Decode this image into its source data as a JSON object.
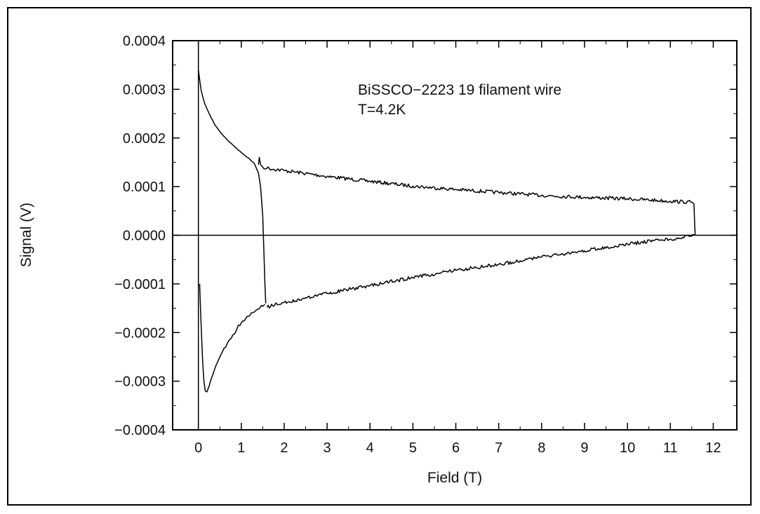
{
  "chart_data": {
    "type": "line",
    "title": "",
    "xlabel": "Field (T)",
    "ylabel": "Signal (V)",
    "xlim": [
      -0.6,
      12.55
    ],
    "ylim": [
      -0.0004,
      0.0004
    ],
    "x_ticks": [
      0,
      1,
      2,
      3,
      4,
      5,
      6,
      7,
      8,
      9,
      10,
      11,
      12
    ],
    "x_tick_labels": [
      "0",
      "1",
      "2",
      "3",
      "4",
      "5",
      "6",
      "7",
      "8",
      "9",
      "10",
      "11",
      "12"
    ],
    "y_ticks": [
      -0.0004,
      -0.0003,
      -0.0002,
      -0.0001,
      0,
      0.0001,
      0.0002,
      0.0003,
      0.0004
    ],
    "y_tick_labels": [
      "−0.0004",
      "−0.0003",
      "−0.0002",
      "−0.0001",
      "0.0000",
      "0.0001",
      "0.0002",
      "0.0003",
      "0.0004"
    ],
    "annotations": [
      "BiSSCO−2223 19 filament wire",
      "T=4.2K"
    ],
    "grid": false,
    "zero_line": true,
    "series": [
      {
        "x": [
          0.0,
          0.0
        ],
        "y": [
          -0.0004,
          0.0004
        ]
      },
      {
        "x": [
          0.0,
          0.03,
          0.06,
          0.1,
          0.15,
          0.2,
          0.3,
          0.4,
          0.5,
          0.6,
          0.7,
          0.8,
          0.9,
          1.0,
          1.1,
          1.2,
          1.3,
          1.4,
          1.45,
          1.5,
          1.53,
          1.55,
          1.57
        ],
        "y": [
          0.00034,
          0.00032,
          0.0003,
          0.000285,
          0.00027,
          0.00026,
          0.000241,
          0.000225,
          0.000213,
          0.000203,
          0.000194,
          0.000186,
          0.000178,
          0.00017,
          0.000163,
          0.000156,
          0.000148,
          0.000128,
          0.0001,
          4e-05,
          -4e-05,
          -0.0001,
          -0.00014
        ]
      },
      {
        "x": [
          1.4,
          1.42,
          1.45,
          1.5,
          1.6,
          2.0,
          3.0,
          4.0,
          5.0,
          6.0,
          7.0,
          8.0,
          9.0,
          10.0,
          11.0,
          11.5,
          11.55
        ],
        "y": [
          0.000145,
          0.00016,
          0.000145,
          0.00014,
          0.000138,
          0.000133,
          0.000121,
          0.000111,
          0.000101,
          9.4e-05,
          8.8e-05,
          8.2e-05,
          7.8e-05,
          7.5e-05,
          7e-05,
          6.8e-05,
          6.5e-05
        ]
      },
      {
        "x": [
          11.55,
          11.56,
          11.57,
          11.58
        ],
        "y": [
          6.5e-05,
          4e-05,
          1.5e-05,
          2e-06
        ]
      },
      {
        "x": [
          11.58,
          11.5,
          11.0,
          10.0,
          9.0,
          8.0,
          7.0,
          6.0,
          5.0,
          4.0,
          3.0,
          2.0,
          1.6
        ],
        "y": [
          2e-06,
          -2e-06,
          -8e-06,
          -1.8e-05,
          -3.2e-05,
          -4.5e-05,
          -6e-05,
          -7.2e-05,
          -8.7e-05,
          -0.000103,
          -0.00012,
          -0.000138,
          -0.000148
        ]
      },
      {
        "x": [
          0.03,
          0.05,
          0.08,
          0.1,
          0.13,
          0.16,
          0.2,
          0.25,
          0.3,
          0.35,
          0.4,
          0.5,
          0.6,
          0.7,
          0.8,
          0.9,
          1.0,
          1.1,
          1.2,
          1.3,
          1.4,
          1.5,
          1.55
        ],
        "y": [
          -0.0001,
          -0.00015,
          -0.00022,
          -0.00026,
          -0.0003,
          -0.00032,
          -0.000322,
          -0.00031,
          -0.000295,
          -0.000283,
          -0.00027,
          -0.00025,
          -0.000232,
          -0.000218,
          -0.000205,
          -0.000192,
          -0.00018,
          -0.000172,
          -0.000165,
          -0.000158,
          -0.000152,
          -0.000146,
          -0.000142
        ]
      }
    ]
  }
}
